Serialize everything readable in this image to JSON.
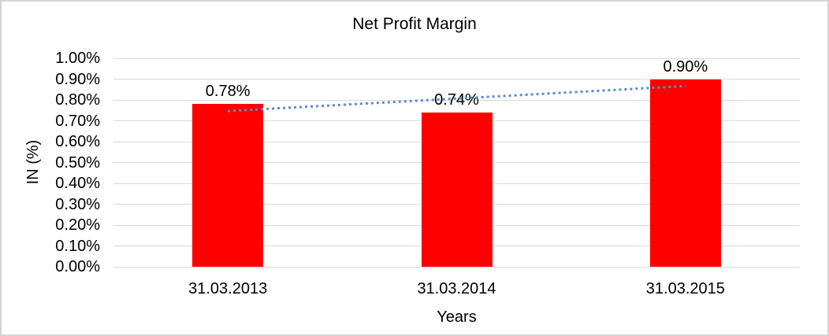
{
  "chart_data": {
    "type": "bar",
    "title": "Net Profit Margin",
    "xlabel": "Years",
    "ylabel": "IN (%)",
    "categories": [
      "31.03.2013",
      "31.03.2014",
      "31.03.2015"
    ],
    "values": [
      0.78,
      0.74,
      0.9
    ],
    "data_labels": [
      "0.78%",
      "0.74%",
      "0.90%"
    ],
    "y_ticks": [
      "1.00%",
      "0.90%",
      "0.80%",
      "0.70%",
      "0.60%",
      "0.50%",
      "0.40%",
      "0.30%",
      "0.20%",
      "0.10%",
      "0.00%"
    ],
    "ylim": [
      0,
      1.0
    ],
    "grid": true,
    "legend": false,
    "bar_color": "#ff0000",
    "gridline_color": "#d9d9d9",
    "trendline": {
      "type": "linear",
      "style": "dotted",
      "color": "#5a8ccd"
    }
  }
}
